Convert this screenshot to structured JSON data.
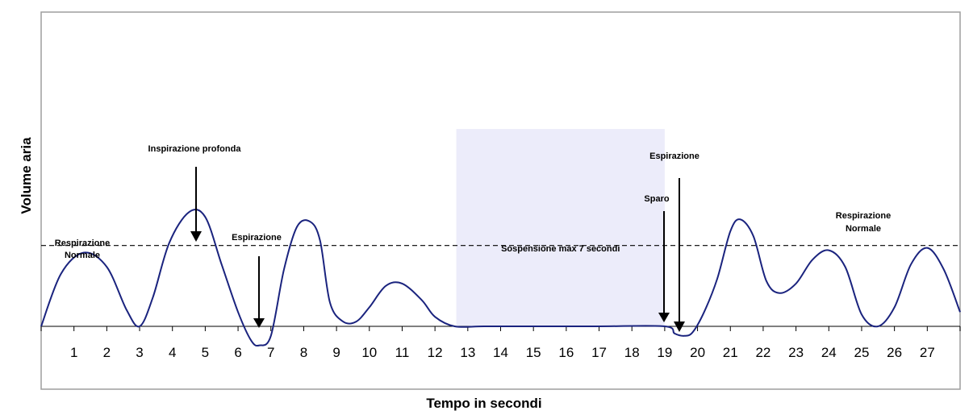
{
  "chart_data": {
    "type": "line",
    "xlabel": "Tempo in secondi",
    "ylabel": "Volume aria",
    "xlim": [
      0,
      28
    ],
    "ylim": [
      -2,
      9.5
    ],
    "grid": false,
    "legend": "none",
    "ticks": [
      "1",
      "2",
      "3",
      "4",
      "5",
      "6",
      "7",
      "8",
      "9",
      "10",
      "11",
      "12",
      "13",
      "14",
      "15",
      "16",
      "17",
      "18",
      "19",
      "20",
      "21",
      "22",
      "23",
      "24",
      "25",
      "26",
      "27"
    ],
    "series": [
      {
        "color": "#1a237e",
        "x": [
          0,
          0.6,
          1.3,
          2.0,
          2.6,
          3.0,
          3.4,
          3.9,
          4.5,
          5.0,
          5.5,
          6.0,
          6.4,
          6.65,
          7.0,
          7.4,
          7.8,
          8.2,
          8.5,
          8.8,
          9.2,
          9.6,
          10.0,
          10.5,
          11.0,
          11.6,
          12.0,
          12.6,
          13.5,
          15.0,
          17.0,
          19.0,
          19.3,
          19.6,
          19.85,
          20.2,
          20.6,
          21.0,
          21.3,
          21.7,
          22.1,
          22.5,
          23.0,
          23.5,
          24.0,
          24.5,
          25.0,
          25.5,
          26.0,
          26.5,
          27.0,
          27.5,
          28.0
        ],
        "y": [
          0,
          2.2,
          3.1,
          2.5,
          0.7,
          0.0,
          1.2,
          3.5,
          4.8,
          4.6,
          2.6,
          0.6,
          -0.6,
          -0.8,
          -0.4,
          2.4,
          4.2,
          4.4,
          3.6,
          1.0,
          0.2,
          0.2,
          0.8,
          1.7,
          1.8,
          1.1,
          0.4,
          0.0,
          0.0,
          0.0,
          0.0,
          0.0,
          -0.3,
          -0.4,
          -0.25,
          0.6,
          2.0,
          4.0,
          4.5,
          3.8,
          1.9,
          1.4,
          1.8,
          2.8,
          3.2,
          2.5,
          0.5,
          0.0,
          0.8,
          2.6,
          3.3,
          2.4,
          0.6
        ]
      }
    ],
    "reference_line": {
      "y": 3.4,
      "style": "dashed"
    },
    "shaded_region": {
      "x": [
        12.65,
        19.0
      ],
      "y": [
        0,
        8.3
      ],
      "color": "#ececfa",
      "label": "Sospensione max 7 secondi"
    },
    "annotations": [
      {
        "id": "resp-normale-left",
        "lines": [
          "Respirazione",
          "Normale"
        ]
      },
      {
        "id": "inspirazione",
        "lines": [
          "Inspirazione profonda"
        ]
      },
      {
        "id": "espirazione-1",
        "lines": [
          "Espirazione"
        ]
      },
      {
        "id": "sparo",
        "lines": [
          "Sparo"
        ]
      },
      {
        "id": "espirazione-2",
        "lines": [
          "Espirazione"
        ]
      },
      {
        "id": "resp-normale-right",
        "lines": [
          "Respirazione",
          "Normale"
        ]
      }
    ]
  }
}
